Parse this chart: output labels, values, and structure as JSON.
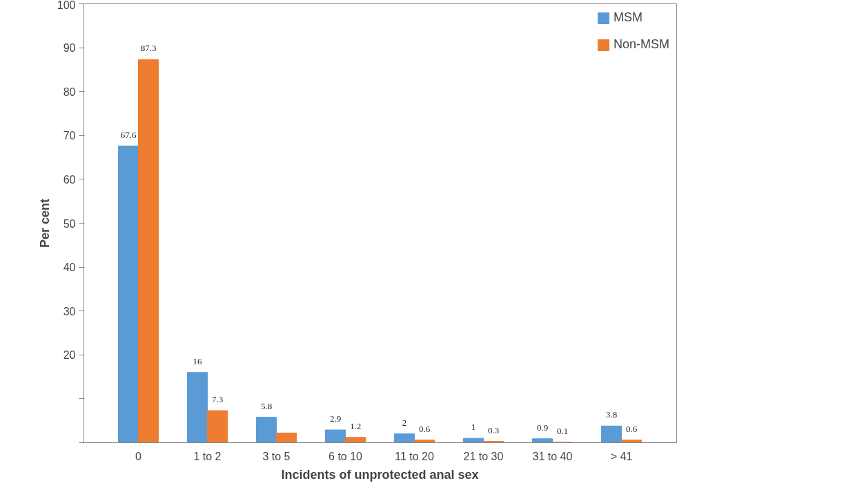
{
  "chart_data": {
    "type": "bar",
    "xlabel": "Incidents of unprotected anal sex",
    "ylabel": "Per cent",
    "categories": [
      "0",
      "1 to 2",
      "3 to 5",
      "6 to 10",
      "11 to 20",
      "21 to 30",
      "31 to 40",
      "> 41"
    ],
    "series": [
      {
        "name": "MSM",
        "color": "#5b9bd5",
        "values": [
          67.6,
          16,
          5.8,
          2.9,
          2,
          1,
          0.9,
          3.8
        ],
        "value_labels": [
          "67.6",
          "16",
          "5.8",
          "2.9",
          "2",
          "1",
          "0.9",
          "3.8"
        ]
      },
      {
        "name": "Non-MSM",
        "color": "#ed7d31",
        "values": [
          87.3,
          7.3,
          2.2,
          1.2,
          0.6,
          0.3,
          0.1,
          0.6
        ],
        "value_labels": [
          "87.3",
          "7.3",
          null,
          "1.2",
          "0.6",
          "0.3",
          "0.1",
          "0.6"
        ]
      }
    ],
    "ylim": [
      0,
      100
    ],
    "yticks": [
      {
        "value": 0,
        "label": null
      },
      {
        "value": 10,
        "label": null
      },
      20,
      30,
      40,
      50,
      60,
      70,
      80,
      90,
      100
    ],
    "grid": false,
    "legend": "top right"
  }
}
